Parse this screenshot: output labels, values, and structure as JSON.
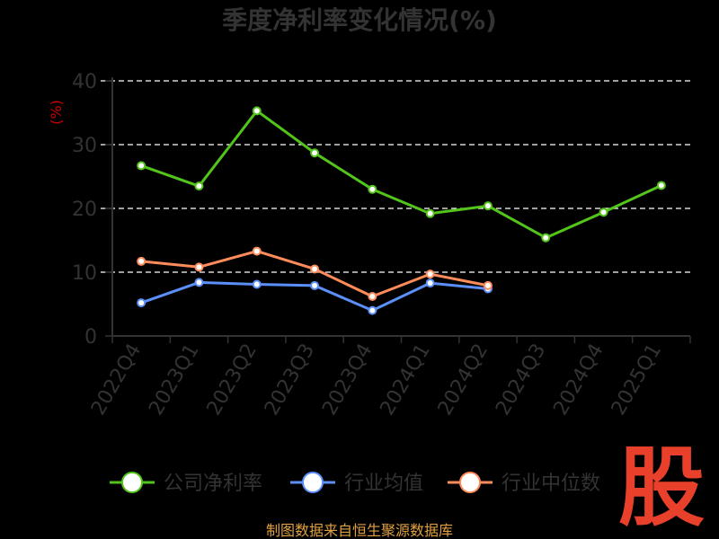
{
  "chart_data": {
    "type": "line",
    "title": "季度净利率变化情况(%)",
    "ylabel": "(%)",
    "xlabel": "",
    "ylim": [
      0,
      40
    ],
    "yticks": [
      0,
      10,
      20,
      30,
      40
    ],
    "grid": true,
    "legend_position": "bottom",
    "categories": [
      "2022Q4",
      "2023Q1",
      "2023Q2",
      "2023Q3",
      "2023Q4",
      "2024Q1",
      "2024Q2",
      "2024Q3",
      "2024Q4",
      "2025Q1"
    ],
    "series": [
      {
        "name": "公司净利率",
        "color": "#52c41a",
        "values": [
          26.7,
          23.5,
          35.3,
          28.7,
          23.0,
          19.2,
          20.4,
          15.4,
          19.4,
          23.6
        ]
      },
      {
        "name": "行业均值",
        "color": "#5b8ff9",
        "values": [
          5.2,
          8.4,
          8.1,
          7.9,
          4.0,
          8.3,
          7.4,
          null,
          null,
          null
        ]
      },
      {
        "name": "行业中位数",
        "color": "#ff8c5a",
        "values": [
          11.7,
          10.8,
          13.3,
          10.5,
          6.2,
          9.7,
          7.9,
          null,
          null,
          null
        ]
      }
    ]
  },
  "source": "制图数据来自恒生聚源数据库",
  "watermark": "股"
}
